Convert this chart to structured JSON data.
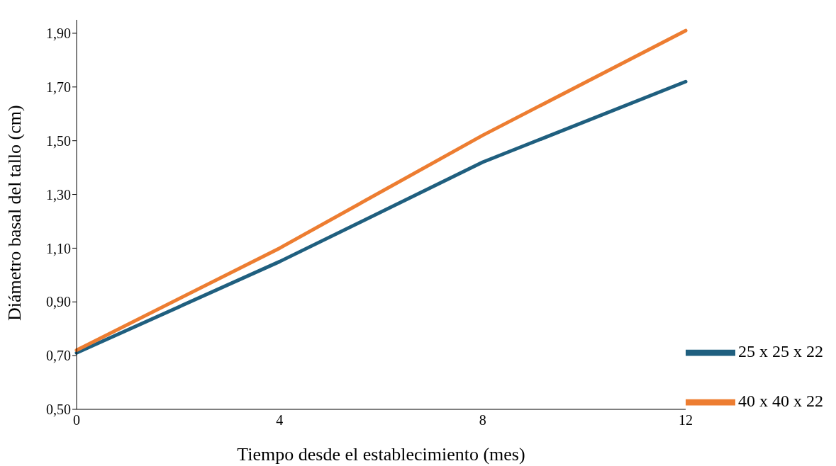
{
  "chart_data": {
    "type": "line",
    "xlabel": "Tiempo desde el establecimiento (mes)",
    "ylabel": "Diámetro basal del tallo (cm)",
    "categories": [
      "0",
      "4",
      "8",
      "12"
    ],
    "series": [
      {
        "name": "25 x 25 x 22",
        "color": "#1f5f7f",
        "values": [
          0.71,
          1.05,
          1.42,
          1.72
        ]
      },
      {
        "name": "40 x 40 x 22",
        "color": "#ed7d31",
        "values": [
          0.72,
          1.1,
          1.52,
          1.91
        ]
      }
    ],
    "ylim": [
      0.5,
      1.95
    ],
    "yticks": [
      {
        "value": 0.5,
        "label": "0,50"
      },
      {
        "value": 0.7,
        "label": "0,70"
      },
      {
        "value": 0.9,
        "label": "0,90"
      },
      {
        "value": 1.1,
        "label": "1,10"
      },
      {
        "value": 1.3,
        "label": "1,30"
      },
      {
        "value": 1.5,
        "label": "1,50"
      },
      {
        "value": 1.7,
        "label": "1,70"
      },
      {
        "value": 1.9,
        "label": "1,90"
      }
    ],
    "grid": false,
    "legend": "right",
    "marker": "none",
    "line_style": "solid"
  }
}
